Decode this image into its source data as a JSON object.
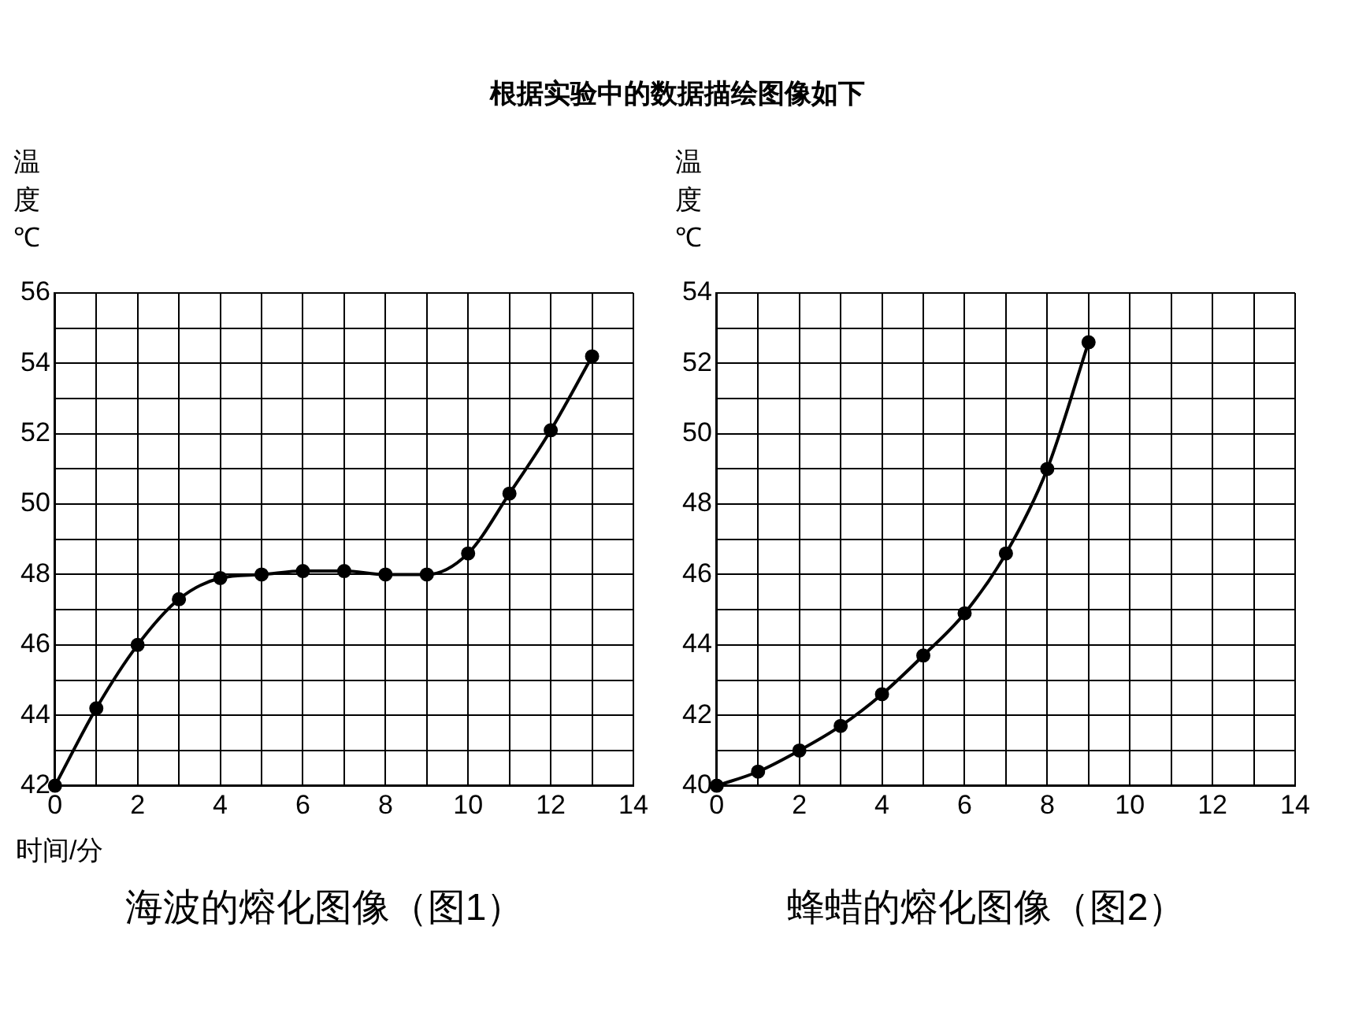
{
  "chart_data": [
    {
      "type": "line",
      "title": "海波的熔化图像（图1）",
      "xlabel": "时间/分",
      "ylabel": "温度℃",
      "annotations": [
        "根据实验中的数据描绘图像如下"
      ],
      "x": [
        0,
        1,
        2,
        3,
        4,
        5,
        6,
        7,
        8,
        9,
        10,
        11,
        12,
        13
      ],
      "series": [
        {
          "color": "#000000",
          "values": [
            42,
            44.2,
            46,
            47.3,
            47.9,
            48,
            48.1,
            48.1,
            48,
            48,
            48.6,
            50.3,
            52.1,
            54.2
          ]
        }
      ],
      "xlim": [
        0,
        14
      ],
      "xticks": [
        0,
        {
          "value": 1,
          "label": null
        },
        2,
        {
          "value": 3,
          "label": null
        },
        4,
        {
          "value": 5,
          "label": null
        },
        6,
        {
          "value": 7,
          "label": null
        },
        8,
        {
          "value": 9,
          "label": null
        },
        10,
        {
          "value": 11,
          "label": null
        },
        12,
        {
          "value": 13,
          "label": null
        },
        14
      ],
      "ylim": [
        42,
        56
      ],
      "yticks": [
        42,
        {
          "value": 43,
          "label": null
        },
        44,
        {
          "value": 45,
          "label": null
        },
        46,
        {
          "value": 47,
          "label": null
        },
        48,
        {
          "value": 49,
          "label": null
        },
        50,
        {
          "value": 51,
          "label": null
        },
        52,
        {
          "value": 53,
          "label": null
        },
        54,
        {
          "value": 55,
          "label": null
        },
        56
      ],
      "grid": true,
      "marker": "circle",
      "line_style": "solid"
    },
    {
      "type": "line",
      "title": "蜂蜡的熔化图像（图2）",
      "ylabel": "温度℃",
      "x": [
        0,
        1,
        2,
        3,
        4,
        5,
        6,
        7,
        8,
        9
      ],
      "series": [
        {
          "color": "#000000",
          "values": [
            40,
            40.4,
            41,
            41.7,
            42.6,
            43.7,
            44.9,
            46.6,
            49,
            52.6
          ]
        }
      ],
      "xlim": [
        0,
        14
      ],
      "xticks": [
        0,
        {
          "value": 1,
          "label": null
        },
        2,
        {
          "value": 3,
          "label": null
        },
        4,
        {
          "value": 5,
          "label": null
        },
        6,
        {
          "value": 7,
          "label": null
        },
        8,
        {
          "value": 9,
          "label": null
        },
        10,
        {
          "value": 11,
          "label": null
        },
        12,
        {
          "value": 13,
          "label": null
        },
        14
      ],
      "ylim": [
        40,
        54
      ],
      "yticks": [
        40,
        {
          "value": 41,
          "label": null
        },
        42,
        {
          "value": 43,
          "label": null
        },
        44,
        {
          "value": 45,
          "label": null
        },
        46,
        {
          "value": 47,
          "label": null
        },
        48,
        {
          "value": 49,
          "label": null
        },
        50,
        {
          "value": 51,
          "label": null
        },
        52,
        {
          "value": 53,
          "label": null
        },
        54
      ],
      "grid": true,
      "marker": "circle",
      "line_style": "solid"
    }
  ]
}
